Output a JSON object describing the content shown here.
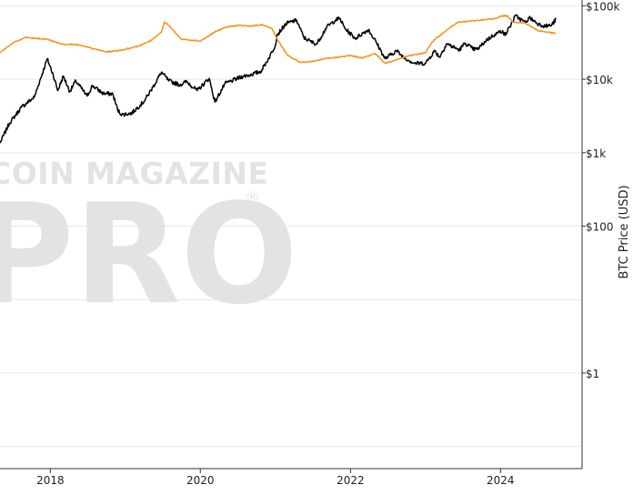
{
  "watermark": {
    "line1": "COIN MAGAZINE",
    "line2": "PRO",
    "mark": "®"
  },
  "chart_data": {
    "type": "line",
    "title": "",
    "xlabel": "",
    "ylabel": "BTC Price (USD)",
    "y_scale": "log",
    "ylim": [
      0.05,
      120000
    ],
    "xlim": [
      "2017-05-01",
      "2025-02-01"
    ],
    "grid": "horizontal",
    "legend": "none",
    "x_ticks": [
      {
        "value": "2018-01-01",
        "label": "2018"
      },
      {
        "value": "2020-01-01",
        "label": "2020"
      },
      {
        "value": "2022-01-01",
        "label": "2022"
      },
      {
        "value": "2024-01-01",
        "label": "2024"
      }
    ],
    "y_ticks": [
      {
        "value": 100000,
        "label": "$100k"
      },
      {
        "value": 10000,
        "label": "$10k"
      },
      {
        "value": 1000,
        "label": "$1k"
      },
      {
        "value": 100,
        "label": "$100"
      },
      {
        "value": 1,
        "label": "$1"
      }
    ],
    "y_gridlines": [
      100000,
      10000,
      1000,
      100,
      10,
      1,
      0.1
    ],
    "series": [
      {
        "color": "#000000",
        "x": [
          "2017-05-01",
          "2017-06-15",
          "2017-08-15",
          "2017-10-15",
          "2017-12-17",
          "2018-01-15",
          "2018-02-06",
          "2018-03-05",
          "2018-04-06",
          "2018-05-05",
          "2018-06-29",
          "2018-07-25",
          "2018-09-15",
          "2018-11-01",
          "2018-11-25",
          "2018-12-15",
          "2019-02-01",
          "2019-04-02",
          "2019-05-15",
          "2019-06-26",
          "2019-08-01",
          "2019-09-24",
          "2019-10-27",
          "2019-12-17",
          "2020-02-13",
          "2020-03-12",
          "2020-04-30",
          "2020-06-01",
          "2020-07-27",
          "2020-09-01",
          "2020-10-21",
          "2020-11-30",
          "2020-12-31",
          "2021-01-08",
          "2021-02-21",
          "2021-03-13",
          "2021-04-14",
          "2021-05-19",
          "2021-06-22",
          "2021-07-20",
          "2021-09-06",
          "2021-10-20",
          "2021-11-10",
          "2021-12-04",
          "2022-01-24",
          "2022-03-29",
          "2022-05-09",
          "2022-06-18",
          "2022-08-13",
          "2022-09-15",
          "2022-11-09",
          "2023-01-01",
          "2023-02-15",
          "2023-03-10",
          "2023-04-14",
          "2023-06-15",
          "2023-07-13",
          "2023-08-18",
          "2023-09-11",
          "2023-10-24",
          "2023-12-05",
          "2024-01-11",
          "2024-01-23",
          "2024-02-15",
          "2024-03-14",
          "2024-05-01",
          "2024-05-20",
          "2024-07-05",
          "2024-08-05",
          "2024-09-06",
          "2024-09-27"
        ],
        "y": [
          1350,
          2500,
          4200,
          5700,
          19000,
          11500,
          7000,
          11000,
          6800,
          9500,
          5900,
          8200,
          6400,
          6300,
          3800,
          3300,
          3450,
          5000,
          7800,
          12500,
          9500,
          8400,
          9300,
          7000,
          10300,
          4900,
          8700,
          9500,
          11000,
          11500,
          12800,
          19500,
          29000,
          40000,
          57000,
          60000,
          63500,
          37000,
          32500,
          30000,
          51000,
          64000,
          67500,
          49500,
          36000,
          47500,
          31000,
          19000,
          24500,
          20000,
          16500,
          16500,
          24500,
          20000,
          30500,
          25000,
          31000,
          26000,
          25500,
          34000,
          41000,
          46000,
          39500,
          52000,
          73000,
          59000,
          69000,
          56500,
          53000,
          54500,
          65500
        ]
      },
      {
        "color": "#f7931a",
        "x": [
          "2017-05-01",
          "2017-07-01",
          "2017-09-01",
          "2017-12-17",
          "2018-03-01",
          "2018-05-01",
          "2018-08-01",
          "2018-10-01",
          "2018-12-15",
          "2019-03-01",
          "2019-05-01",
          "2019-06-26",
          "2019-07-10",
          "2019-08-01",
          "2019-10-01",
          "2019-12-01",
          "2020-01-01",
          "2020-03-12",
          "2020-05-01",
          "2020-07-01",
          "2020-09-01",
          "2020-11-01",
          "2020-12-15",
          "2021-01-15",
          "2021-03-01",
          "2021-05-01",
          "2021-07-01",
          "2021-09-01",
          "2021-11-01",
          "2022-01-01",
          "2022-03-01",
          "2022-05-01",
          "2022-06-18",
          "2022-08-01",
          "2022-10-01",
          "2023-01-01",
          "2023-02-01",
          "2023-03-15",
          "2023-06-01",
          "2023-09-01",
          "2023-12-01",
          "2024-01-01",
          "2024-02-01",
          "2024-03-01",
          "2024-05-01",
          "2024-07-01",
          "2024-09-27"
        ],
        "y": [
          23000,
          31000,
          37000,
          35000,
          30000,
          30000,
          26000,
          23500,
          25000,
          28000,
          33000,
          44000,
          60000,
          54000,
          35000,
          34000,
          33000,
          44000,
          51000,
          54000,
          53000,
          55000,
          49000,
          33000,
          21000,
          17000,
          17500,
          19000,
          20000,
          21000,
          19500,
          22500,
          16500,
          18000,
          20500,
          23000,
          32000,
          40000,
          59000,
          63000,
          66500,
          72000,
          73500,
          60500,
          58000,
          46000,
          42000
        ]
      }
    ]
  }
}
